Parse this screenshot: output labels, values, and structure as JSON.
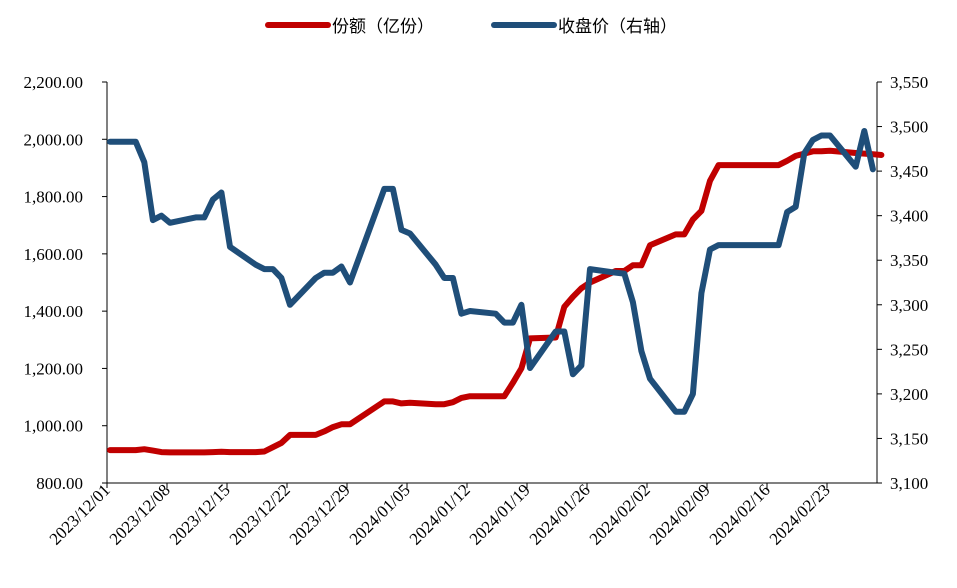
{
  "chart_data": {
    "type": "line",
    "title": "",
    "xlabel": "",
    "ylabel": "",
    "legend_position": "top-center",
    "grid": false,
    "x_tick_labels": [
      "2023/12/01",
      "2023/12/08",
      "2023/12/15",
      "2023/12/22",
      "2023/12/29",
      "2024/01/05",
      "2024/01/12",
      "2024/01/19",
      "2024/01/26",
      "2024/02/02",
      "2024/02/09",
      "2024/02/16",
      "2024/02/23"
    ],
    "y_left": {
      "ylim": [
        800,
        2200
      ],
      "tick_labels": [
        "800.00",
        "1,000.00",
        "1,200.00",
        "1,400.00",
        "1,600.00",
        "1,800.00",
        "2,000.00",
        "2,200.00"
      ]
    },
    "y_right": {
      "ylim": [
        3100,
        3550
      ],
      "tick_labels": [
        "3,100",
        "3,150",
        "3,200",
        "3,250",
        "3,300",
        "3,350",
        "3,400",
        "3,450",
        "3,500",
        "3,550"
      ]
    },
    "series": [
      {
        "name": "份额（亿份）",
        "axis": "left",
        "color": "#c00000",
        "points": [
          [
            "2023/12/01",
            915
          ],
          [
            "2023/12/04",
            915
          ],
          [
            "2023/12/05",
            918
          ],
          [
            "2023/12/06",
            913
          ],
          [
            "2023/12/07",
            908
          ],
          [
            "2023/12/08",
            907
          ],
          [
            "2023/12/11",
            907
          ],
          [
            "2023/12/12",
            907
          ],
          [
            "2023/12/13",
            908
          ],
          [
            "2023/12/14",
            909
          ],
          [
            "2023/12/15",
            908
          ],
          [
            "2023/12/18",
            908
          ],
          [
            "2023/12/19",
            910
          ],
          [
            "2023/12/20",
            925
          ],
          [
            "2023/12/21",
            940
          ],
          [
            "2023/12/22",
            968
          ],
          [
            "2023/12/25",
            968
          ],
          [
            "2023/12/26",
            980
          ],
          [
            "2023/12/27",
            995
          ],
          [
            "2023/12/28",
            1005
          ],
          [
            "2023/12/29",
            1005
          ],
          [
            "2024/01/02",
            1085
          ],
          [
            "2024/01/03",
            1085
          ],
          [
            "2024/01/04",
            1078
          ],
          [
            "2024/01/05",
            1080
          ],
          [
            "2024/01/08",
            1075
          ],
          [
            "2024/01/09",
            1075
          ],
          [
            "2024/01/10",
            1082
          ],
          [
            "2024/01/11",
            1097
          ],
          [
            "2024/01/12",
            1103
          ],
          [
            "2024/01/15",
            1103
          ],
          [
            "2024/01/16",
            1103
          ],
          [
            "2024/01/17",
            1150
          ],
          [
            "2024/01/18",
            1200
          ],
          [
            "2024/01/19",
            1305
          ],
          [
            "2024/01/22",
            1308
          ],
          [
            "2024/01/23",
            1415
          ],
          [
            "2024/01/24",
            1450
          ],
          [
            "2024/01/25",
            1480
          ],
          [
            "2024/01/26",
            1500
          ],
          [
            "2024/01/29",
            1540
          ],
          [
            "2024/01/30",
            1540
          ],
          [
            "2024/01/31",
            1560
          ],
          [
            "2024/02/01",
            1560
          ],
          [
            "2024/02/02",
            1630
          ],
          [
            "2024/02/05",
            1668
          ],
          [
            "2024/02/06",
            1668
          ],
          [
            "2024/02/07",
            1720
          ],
          [
            "2024/02/08",
            1750
          ],
          [
            "2024/02/09",
            1855
          ],
          [
            "2024/02/10",
            1910
          ],
          [
            "2024/02/17",
            1910
          ],
          [
            "2024/02/18",
            1925
          ],
          [
            "2024/02/19",
            1942
          ],
          [
            "2024/02/20",
            1950
          ],
          [
            "2024/02/21",
            1958
          ],
          [
            "2024/02/22",
            1958
          ],
          [
            "2024/02/23",
            1960
          ],
          [
            "2024/02/26",
            1952
          ],
          [
            "2024/02/27",
            1950
          ],
          [
            "2024/02/28",
            1948
          ],
          [
            "2024/02/29",
            1945
          ]
        ]
      },
      {
        "name": "收盘价（右轴）",
        "axis": "right",
        "color": "#1f4e79",
        "points": [
          [
            "2023/12/01",
            3483
          ],
          [
            "2023/12/04",
            3483
          ],
          [
            "2023/12/05",
            3460
          ],
          [
            "2023/12/06",
            3395
          ],
          [
            "2023/12/07",
            3400
          ],
          [
            "2023/12/08",
            3392
          ],
          [
            "2023/12/11",
            3398
          ],
          [
            "2023/12/12",
            3398
          ],
          [
            "2023/12/13",
            3418
          ],
          [
            "2023/12/14",
            3426
          ],
          [
            "2023/12/15",
            3365
          ],
          [
            "2023/12/18",
            3345
          ],
          [
            "2023/12/19",
            3340
          ],
          [
            "2023/12/20",
            3340
          ],
          [
            "2023/12/21",
            3330
          ],
          [
            "2023/12/22",
            3300
          ],
          [
            "2023/12/25",
            3330
          ],
          [
            "2023/12/26",
            3336
          ],
          [
            "2023/12/27",
            3336
          ],
          [
            "2023/12/28",
            3343
          ],
          [
            "2023/12/29",
            3325
          ],
          [
            "2024/01/02",
            3430
          ],
          [
            "2024/01/03",
            3430
          ],
          [
            "2024/01/04",
            3384
          ],
          [
            "2024/01/05",
            3380
          ],
          [
            "2024/01/08",
            3345
          ],
          [
            "2024/01/09",
            3330
          ],
          [
            "2024/01/10",
            3330
          ],
          [
            "2024/01/11",
            3290
          ],
          [
            "2024/01/12",
            3293
          ],
          [
            "2024/01/15",
            3290
          ],
          [
            "2024/01/16",
            3280
          ],
          [
            "2024/01/17",
            3280
          ],
          [
            "2024/01/18",
            3300
          ],
          [
            "2024/01/19",
            3229
          ],
          [
            "2024/01/22",
            3270
          ],
          [
            "2024/01/23",
            3270
          ],
          [
            "2024/01/24",
            3222
          ],
          [
            "2024/01/25",
            3232
          ],
          [
            "2024/01/26",
            3340
          ],
          [
            "2024/01/29",
            3336
          ],
          [
            "2024/01/30",
            3335
          ],
          [
            "2024/01/31",
            3303
          ],
          [
            "2024/02/01",
            3248
          ],
          [
            "2024/02/02",
            3217
          ],
          [
            "2024/02/05",
            3180
          ],
          [
            "2024/02/06",
            3180
          ],
          [
            "2024/02/07",
            3200
          ],
          [
            "2024/02/08",
            3313
          ],
          [
            "2024/02/09",
            3362
          ],
          [
            "2024/02/10",
            3367
          ],
          [
            "2024/02/17",
            3367
          ],
          [
            "2024/02/18",
            3404
          ],
          [
            "2024/02/19",
            3410
          ],
          [
            "2024/02/20",
            3470
          ],
          [
            "2024/02/21",
            3485
          ],
          [
            "2024/02/22",
            3490
          ],
          [
            "2024/02/23",
            3490
          ],
          [
            "2024/02/26",
            3455
          ],
          [
            "2024/02/27",
            3495
          ],
          [
            "2024/02/28",
            3452
          ]
        ]
      }
    ]
  }
}
